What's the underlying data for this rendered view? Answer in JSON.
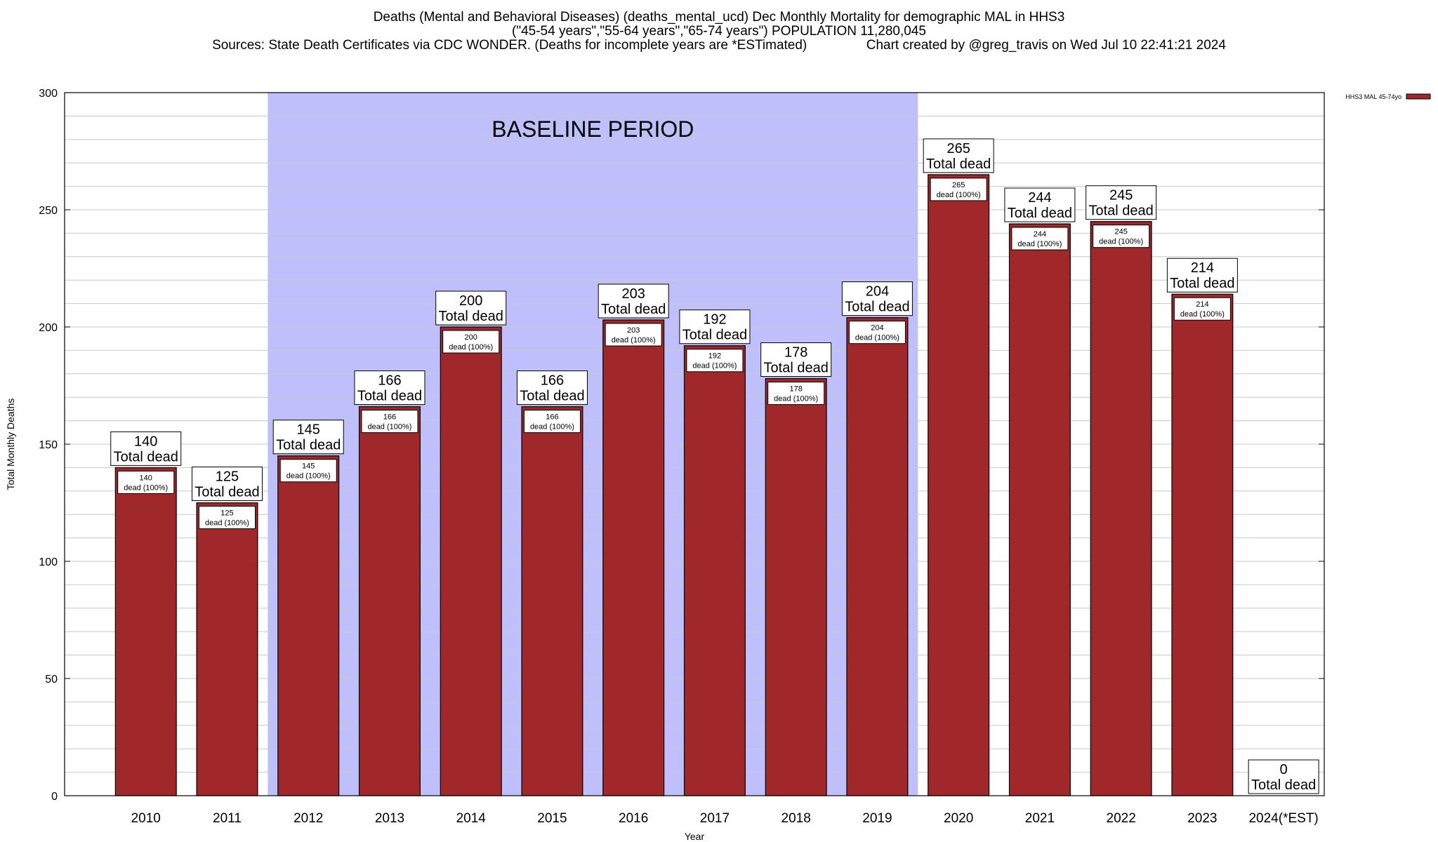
{
  "title_lines": [
    "Deaths (Mental and Behavioral Diseases) (deaths_mental_ucd) Dec Monthly Mortality for demographic MAL in HHS3",
    "(\"45-54 years\",\"55-64 years\",\"65-74 years\") POPULATION 11,280,045",
    "Sources: State Death Certificates via CDC WONDER. (Deaths for incomplete years are *ESTimated)                Chart created by @greg_travis on Wed Jul 10 22:41:21 2024"
  ],
  "colors": {
    "bar": "#a0282b",
    "baseline_shade": "#bfbffb",
    "grid": "#c8c8c8"
  },
  "chart_data": {
    "type": "bar",
    "xlabel": "Year",
    "ylabel": "Total Monthly Deaths",
    "ylim": [
      0,
      300
    ],
    "yticks": [
      0,
      50,
      100,
      150,
      200,
      250,
      300
    ],
    "grid": true,
    "legend_position": "top-right",
    "categories": [
      "2010",
      "2011",
      "2012",
      "2013",
      "2014",
      "2015",
      "2016",
      "2017",
      "2018",
      "2019",
      "2020",
      "2021",
      "2022",
      "2023",
      "2024(*EST)"
    ],
    "series": [
      {
        "name": "HHS3 MAL 45-74yo",
        "values": [
          140,
          125,
          145,
          166,
          200,
          166,
          203,
          192,
          178,
          204,
          265,
          244,
          245,
          214,
          0
        ]
      }
    ],
    "top_label_suffix": "Total dead",
    "inner_label_suffix": "dead (100%)",
    "annotation": {
      "text": "BASELINE PERIOD",
      "from_category": "2012",
      "to_category": "2019"
    }
  }
}
